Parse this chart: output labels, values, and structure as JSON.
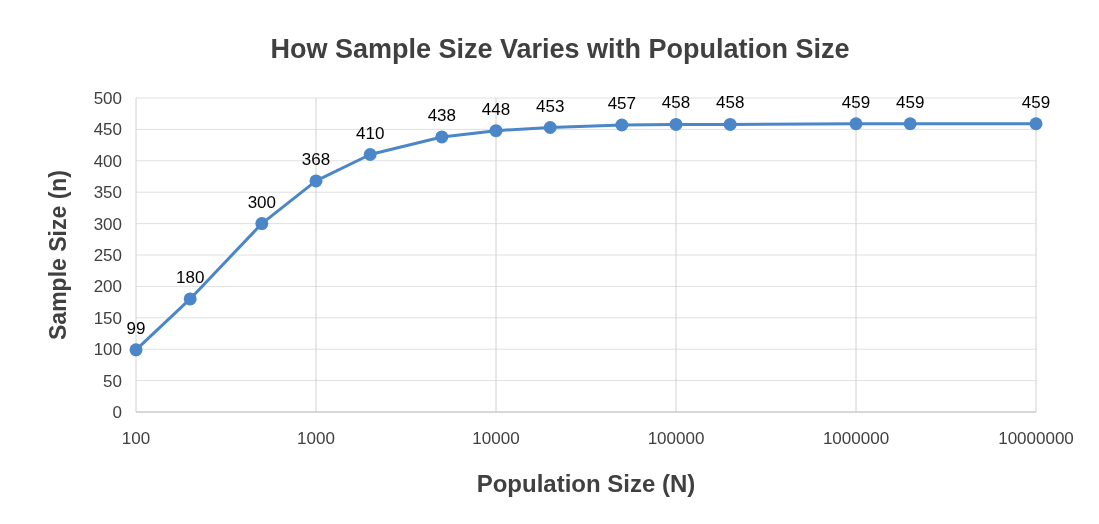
{
  "chart_data": {
    "type": "line",
    "title": "How Sample Size Varies with Population Size",
    "xlabel": "Population Size (N)",
    "ylabel": "Sample Size (n)",
    "x": [
      100,
      200,
      500,
      1000,
      2000,
      5000,
      10000,
      20000,
      50000,
      100000,
      200000,
      1000000,
      2000000,
      10000000
    ],
    "series": [
      {
        "color": "#4a86c8",
        "values": [
          99,
          180,
          300,
          368,
          410,
          438,
          448,
          453,
          457,
          458,
          458,
          459,
          459,
          459
        ]
      }
    ],
    "log": "x",
    "xlim": [
      100,
      10000000
    ],
    "xticks": [
      100,
      1000,
      10000,
      100000,
      1000000,
      10000000
    ],
    "ylim": [
      0,
      500
    ],
    "yticks": [
      0,
      50,
      100,
      150,
      200,
      250,
      300,
      350,
      400,
      450,
      500
    ],
    "grid": true,
    "marker": "circle",
    "line_style": "solid",
    "data_labels": true
  }
}
